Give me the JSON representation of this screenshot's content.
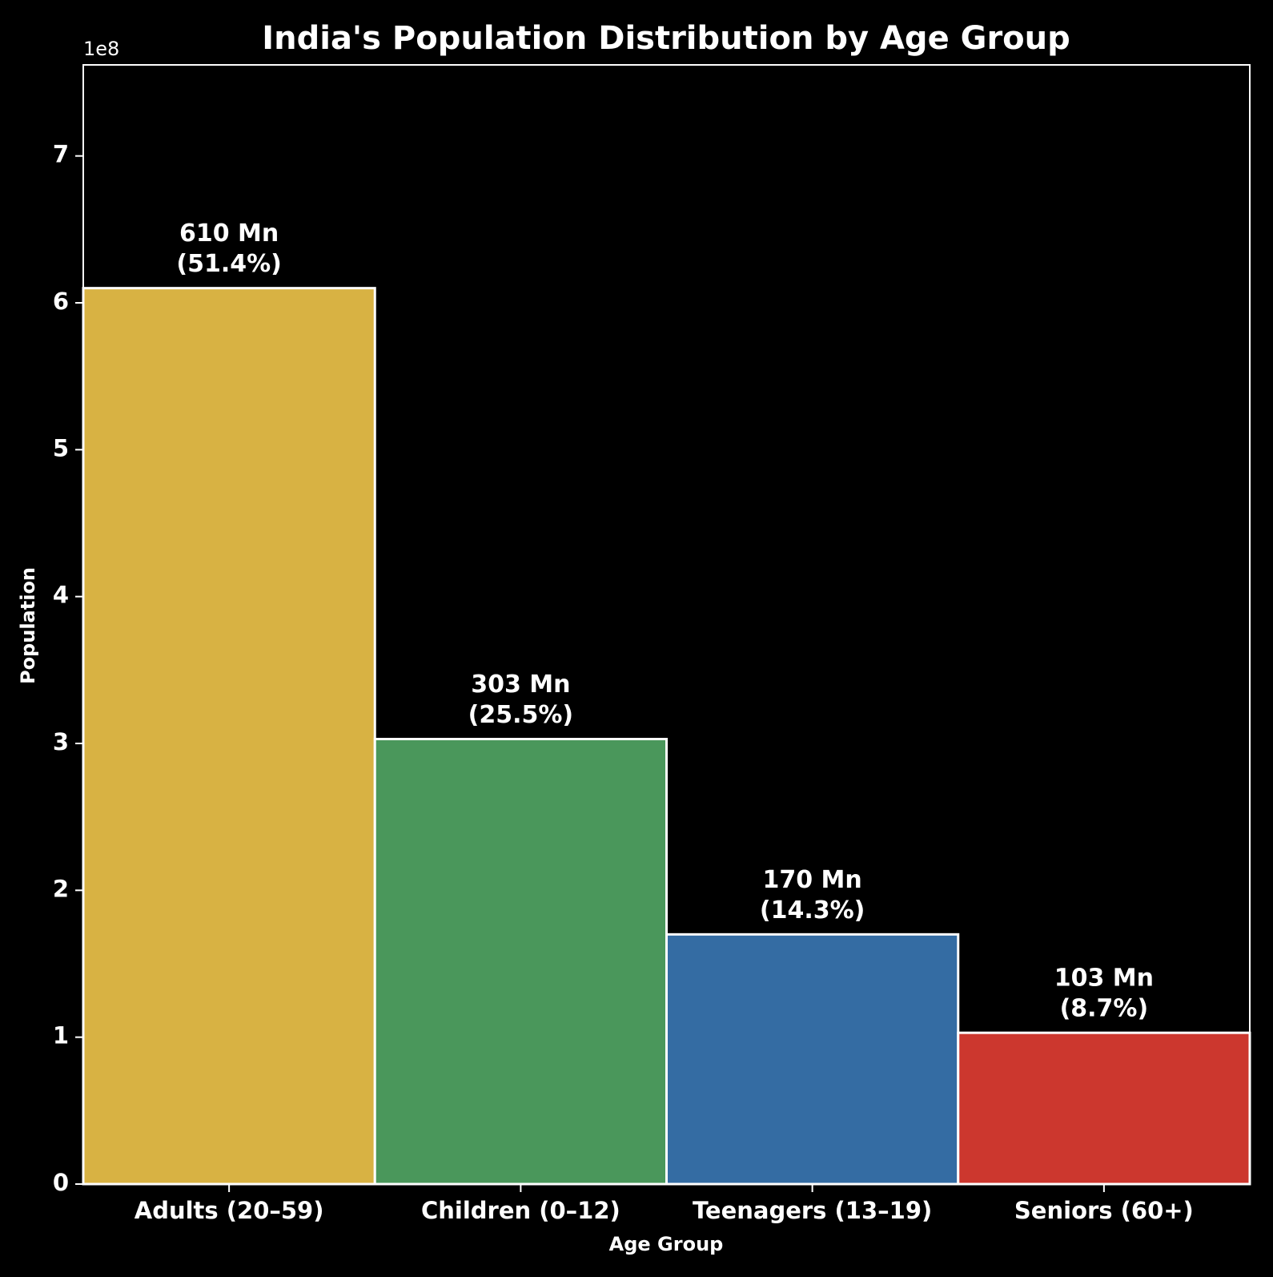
{
  "chart_data": {
    "type": "bar",
    "title": "India's Population Distribution by Age Group",
    "xlabel": "Age Group",
    "ylabel": "Population",
    "offset_text": "1e8",
    "categories": [
      "Adults (20–59)",
      "Children (0–12)",
      "Teenagers (13–19)",
      "Seniors (60+)"
    ],
    "values": [
      610000000,
      303000000,
      170000000,
      103000000
    ],
    "value_labels": [
      "610 Mn",
      "303 Mn",
      "170 Mn",
      "103 Mn"
    ],
    "percent_labels": [
      "(51.4%)",
      "(25.5%)",
      "(14.3%)",
      "(8.7%)"
    ],
    "bar_colors": [
      "#D8B243",
      "#4A975B",
      "#346CA3",
      "#CC372E"
    ],
    "yticks": [
      0,
      100000000,
      200000000,
      300000000,
      400000000,
      500000000,
      600000000,
      700000000
    ],
    "ytick_labels": [
      "0",
      "1",
      "2",
      "3",
      "4",
      "5",
      "6",
      "7"
    ],
    "ylim": [
      0,
      762000000
    ],
    "grid": false,
    "background": "#000000",
    "foreground": "#ffffff"
  }
}
